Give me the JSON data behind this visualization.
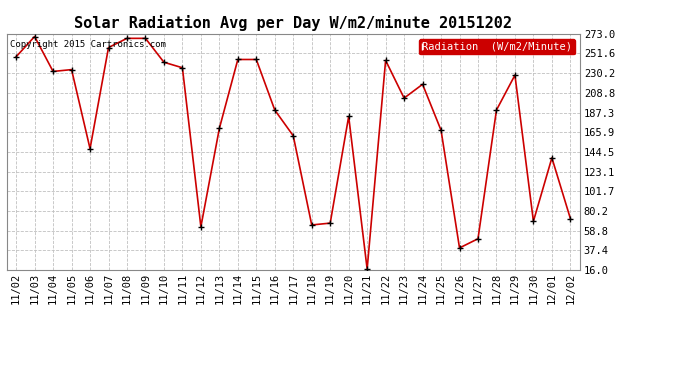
{
  "title": "Solar Radiation Avg per Day W/m2/minute 20151202",
  "copyright_text": "Copyright 2015 Cartronics.com",
  "legend_label": "Radiation  (W/m2/Minute)",
  "dates": [
    "11/02",
    "11/03",
    "11/04",
    "11/05",
    "11/06",
    "11/07",
    "11/08",
    "11/09",
    "11/10",
    "11/11",
    "11/12",
    "11/13",
    "11/14",
    "11/15",
    "11/16",
    "11/17",
    "11/18",
    "11/19",
    "11/20",
    "11/21",
    "11/22",
    "11/23",
    "11/24",
    "11/25",
    "11/26",
    "11/27",
    "11/28",
    "11/29",
    "11/30",
    "12/01",
    "12/02"
  ],
  "values": [
    248,
    270,
    232,
    234,
    148,
    258,
    268,
    268,
    242,
    236,
    63,
    170,
    245,
    245,
    190,
    162,
    65,
    67,
    183,
    17,
    244,
    203,
    218,
    168,
    40,
    50,
    190,
    228,
    69,
    138,
    72
  ],
  "y_ticks": [
    16.0,
    37.4,
    58.8,
    80.2,
    101.7,
    123.1,
    144.5,
    165.9,
    187.3,
    208.8,
    230.2,
    251.6,
    273.0
  ],
  "ylim": [
    16.0,
    273.0
  ],
  "line_color": "#cc0000",
  "marker_color": "#000000",
  "bg_color": "#ffffff",
  "grid_color": "#c0c0c0",
  "title_fontsize": 11,
  "tick_fontsize": 7.5,
  "legend_bg": "#cc0000",
  "legend_fg": "#ffffff"
}
